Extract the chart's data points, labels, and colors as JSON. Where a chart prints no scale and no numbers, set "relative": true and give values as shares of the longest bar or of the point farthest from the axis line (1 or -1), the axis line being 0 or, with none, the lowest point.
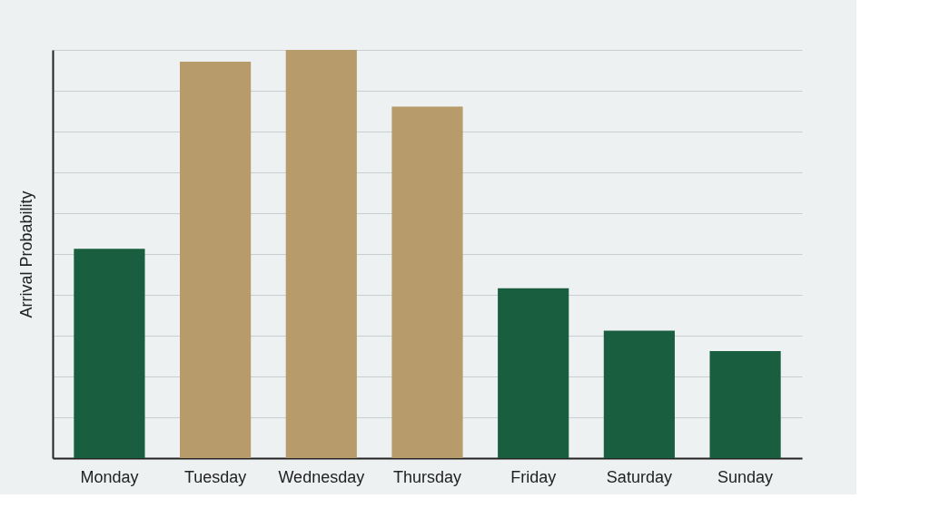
{
  "chart_data": {
    "type": "bar",
    "ylabel": "Arrival Probability",
    "relative": true,
    "grid": "y",
    "categories": [
      "Monday",
      "Tuesday",
      "Wednesday",
      "Thursday",
      "Friday",
      "Saturday",
      "Sunday"
    ],
    "values": [
      0.513,
      0.971,
      1,
      0.861,
      0.416,
      0.312,
      0.262
    ],
    "colors": [
      "#1a5e40",
      "#b89b6b",
      "#b89b6b",
      "#b89b6b",
      "#1a5e40",
      "#1a5e40",
      "#1a5e40"
    ]
  }
}
